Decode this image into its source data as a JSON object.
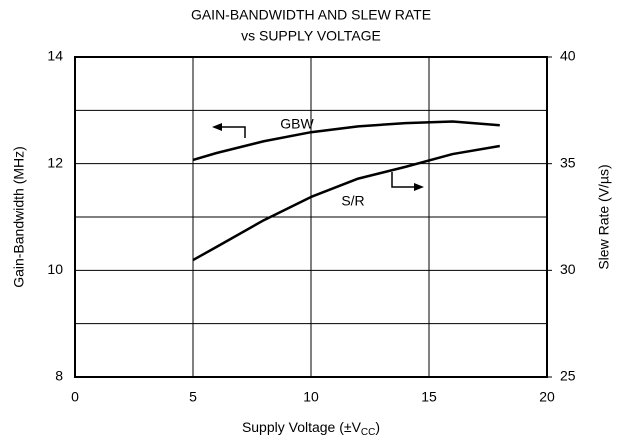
{
  "chart_data": {
    "type": "line",
    "title": "GAIN-BANDWIDTH AND SLEW RATE",
    "subtitle": "vs SUPPLY VOLTAGE",
    "x_label": [
      "Supply Voltage (±V",
      "CC",
      ")"
    ],
    "y_label": "Gain-Bandwidth (MHz)",
    "y2_label": "Slew Rate (V/µs)",
    "x": [
      5,
      6,
      8,
      10,
      12,
      14,
      16,
      18
    ],
    "series": [
      {
        "name": "GBW",
        "color": "#000000",
        "values": [
          12.07,
          12.2,
          12.42,
          12.59,
          12.7,
          12.76,
          12.79,
          12.72
        ]
      },
      {
        "name": "S/R",
        "color": "#000000",
        "axis": "y2",
        "values": [
          30.48,
          31.1,
          32.35,
          33.44,
          34.3,
          34.85,
          35.45,
          35.83
        ]
      }
    ],
    "xlim": [
      0,
      20
    ],
    "xticks": [
      0,
      5,
      10,
      15,
      20
    ],
    "ylim": [
      8,
      14
    ],
    "yticks": [
      8,
      10,
      12,
      14
    ],
    "ygrid": [
      9,
      11,
      13
    ],
    "y2lim": [
      25,
      40
    ],
    "y2ticks": [
      25,
      30,
      35,
      40
    ],
    "grid": true
  }
}
